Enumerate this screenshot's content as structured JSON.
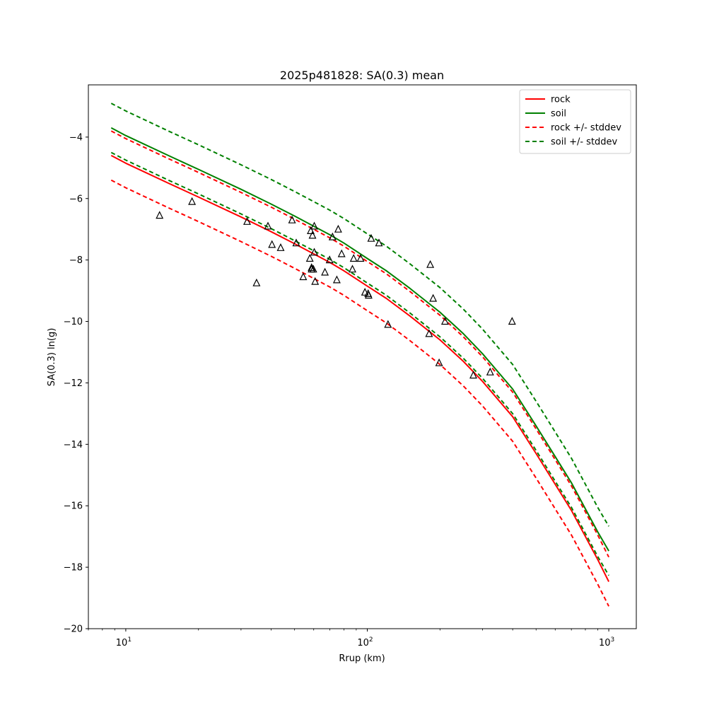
{
  "chart_data": {
    "type": "line",
    "title": "2025p481828: SA(0.3) mean",
    "xlabel": "Rrup (km)",
    "ylabel": "SA(0.3) ln(g)",
    "xscale": "log",
    "xlim": [
      7,
      1300
    ],
    "ylim": [
      -20,
      -2.3
    ],
    "x_ticks": [
      10,
      100,
      1000
    ],
    "x_tick_labels": [
      {
        "base": "10",
        "exp": "1"
      },
      {
        "base": "10",
        "exp": "2"
      },
      {
        "base": "10",
        "exp": "3"
      }
    ],
    "y_ticks": [
      -20,
      -18,
      -16,
      -14,
      -12,
      -10,
      -8,
      -6,
      -4
    ],
    "y_tick_labels": [
      "−20",
      "−18",
      "−16",
      "−14",
      "−12",
      "−10",
      "−8",
      "−6",
      "−4"
    ],
    "legend_position": "top-right",
    "series": [
      {
        "name": "rock",
        "color": "#ff0000",
        "dashed": false,
        "legend": true,
        "x": [
          8.7,
          10,
          15,
          20,
          30,
          40,
          50,
          60,
          70,
          80,
          100,
          120,
          150,
          200,
          250,
          300,
          400,
          500,
          600,
          700,
          800,
          900,
          1000
        ],
        "y": [
          -4.6,
          -4.85,
          -5.5,
          -5.95,
          -6.6,
          -7.08,
          -7.47,
          -7.8,
          -8.08,
          -8.35,
          -8.85,
          -9.25,
          -9.82,
          -10.6,
          -11.3,
          -11.95,
          -13.1,
          -14.3,
          -15.3,
          -16.15,
          -17.0,
          -17.75,
          -18.47
        ]
      },
      {
        "name": "soil",
        "color": "#008000",
        "dashed": false,
        "legend": true,
        "x": [
          8.7,
          10,
          15,
          20,
          30,
          40,
          50,
          60,
          70,
          80,
          100,
          120,
          150,
          200,
          250,
          300,
          400,
          500,
          600,
          700,
          800,
          900,
          1000
        ],
        "y": [
          -3.7,
          -3.95,
          -4.6,
          -5.05,
          -5.7,
          -6.18,
          -6.57,
          -6.9,
          -7.18,
          -7.45,
          -7.95,
          -8.35,
          -8.92,
          -9.7,
          -10.4,
          -11.05,
          -12.2,
          -13.4,
          -14.4,
          -15.25,
          -16.1,
          -16.85,
          -17.47
        ]
      },
      {
        "name": "rock +/- stddev",
        "color": "#ff0000",
        "dashed": true,
        "legend": true,
        "x": [
          8.7,
          10,
          15,
          20,
          30,
          40,
          50,
          60,
          70,
          80,
          100,
          120,
          150,
          200,
          250,
          300,
          400,
          500,
          600,
          700,
          800,
          900,
          1000
        ],
        "y": [
          -3.8,
          -4.05,
          -4.7,
          -5.15,
          -5.8,
          -6.28,
          -6.67,
          -7.0,
          -7.28,
          -7.55,
          -8.05,
          -8.45,
          -9.02,
          -9.8,
          -10.5,
          -11.15,
          -12.3,
          -13.5,
          -14.5,
          -15.35,
          -16.2,
          -16.95,
          -17.67
        ]
      },
      {
        "name": "rock +/- stddev",
        "color": "#ff0000",
        "dashed": true,
        "legend": false,
        "x": [
          8.7,
          10,
          15,
          20,
          30,
          40,
          50,
          60,
          70,
          80,
          100,
          120,
          150,
          200,
          250,
          300,
          400,
          500,
          600,
          700,
          800,
          900,
          1000
        ],
        "y": [
          -5.4,
          -5.65,
          -6.3,
          -6.75,
          -7.4,
          -7.88,
          -8.27,
          -8.6,
          -8.88,
          -9.15,
          -9.65,
          -10.05,
          -10.62,
          -11.4,
          -12.1,
          -12.75,
          -13.9,
          -15.1,
          -16.1,
          -16.95,
          -17.8,
          -18.55,
          -19.27
        ]
      },
      {
        "name": "soil +/- stddev",
        "color": "#008000",
        "dashed": true,
        "legend": true,
        "x": [
          8.7,
          10,
          15,
          20,
          30,
          40,
          50,
          60,
          70,
          80,
          100,
          120,
          150,
          200,
          250,
          300,
          400,
          500,
          600,
          700,
          800,
          900,
          1000
        ],
        "y": [
          -2.9,
          -3.15,
          -3.8,
          -4.25,
          -4.9,
          -5.38,
          -5.77,
          -6.1,
          -6.38,
          -6.65,
          -7.15,
          -7.55,
          -8.12,
          -8.9,
          -9.6,
          -10.25,
          -11.4,
          -12.6,
          -13.6,
          -14.45,
          -15.3,
          -16.05,
          -16.67
        ]
      },
      {
        "name": "soil +/- stddev",
        "color": "#008000",
        "dashed": true,
        "legend": false,
        "x": [
          8.7,
          10,
          15,
          20,
          30,
          40,
          50,
          60,
          70,
          80,
          100,
          120,
          150,
          200,
          250,
          300,
          400,
          500,
          600,
          700,
          800,
          900,
          1000
        ],
        "y": [
          -4.5,
          -4.75,
          -5.4,
          -5.85,
          -6.5,
          -6.98,
          -7.37,
          -7.7,
          -7.98,
          -8.25,
          -8.75,
          -9.15,
          -9.72,
          -10.5,
          -11.2,
          -11.85,
          -13.0,
          -14.2,
          -15.2,
          -16.05,
          -16.9,
          -17.65,
          -18.27
        ]
      }
    ],
    "observations": {
      "marker": "triangle-open",
      "color": "#000000",
      "x": [
        13.8,
        18.8,
        31.8,
        34.8,
        38.8,
        40.3,
        43.8,
        48.8,
        50.8,
        54.3,
        57.8,
        58.3,
        58.8,
        58.8,
        59.3,
        59.8,
        60.3,
        60.3,
        60.8,
        66.8,
        69.8,
        71.8,
        74.8,
        75.8,
        78.3,
        86.8,
        87.8,
        93.8,
        97.8,
        100.8,
        101.3,
        103.8,
        111.8,
        121.8,
        180.3,
        182.3,
        187.3,
        198.3,
        209.8,
        274.8,
        322.8,
        397.8
      ],
      "y": [
        -6.55,
        -6.1,
        -6.75,
        -8.75,
        -6.9,
        -7.5,
        -7.6,
        -6.7,
        -7.45,
        -8.55,
        -7.95,
        -7.05,
        -8.25,
        -8.3,
        -7.2,
        -8.3,
        -6.9,
        -7.75,
        -8.7,
        -8.4,
        -8.0,
        -7.25,
        -8.65,
        -7.0,
        -7.8,
        -8.3,
        -7.95,
        -7.95,
        -9.05,
        -9.1,
        -9.15,
        -7.3,
        -7.45,
        -10.1,
        -10.4,
        -8.15,
        -9.25,
        -11.35,
        -10.0,
        -11.75,
        -11.65,
        -10.0
      ]
    }
  }
}
